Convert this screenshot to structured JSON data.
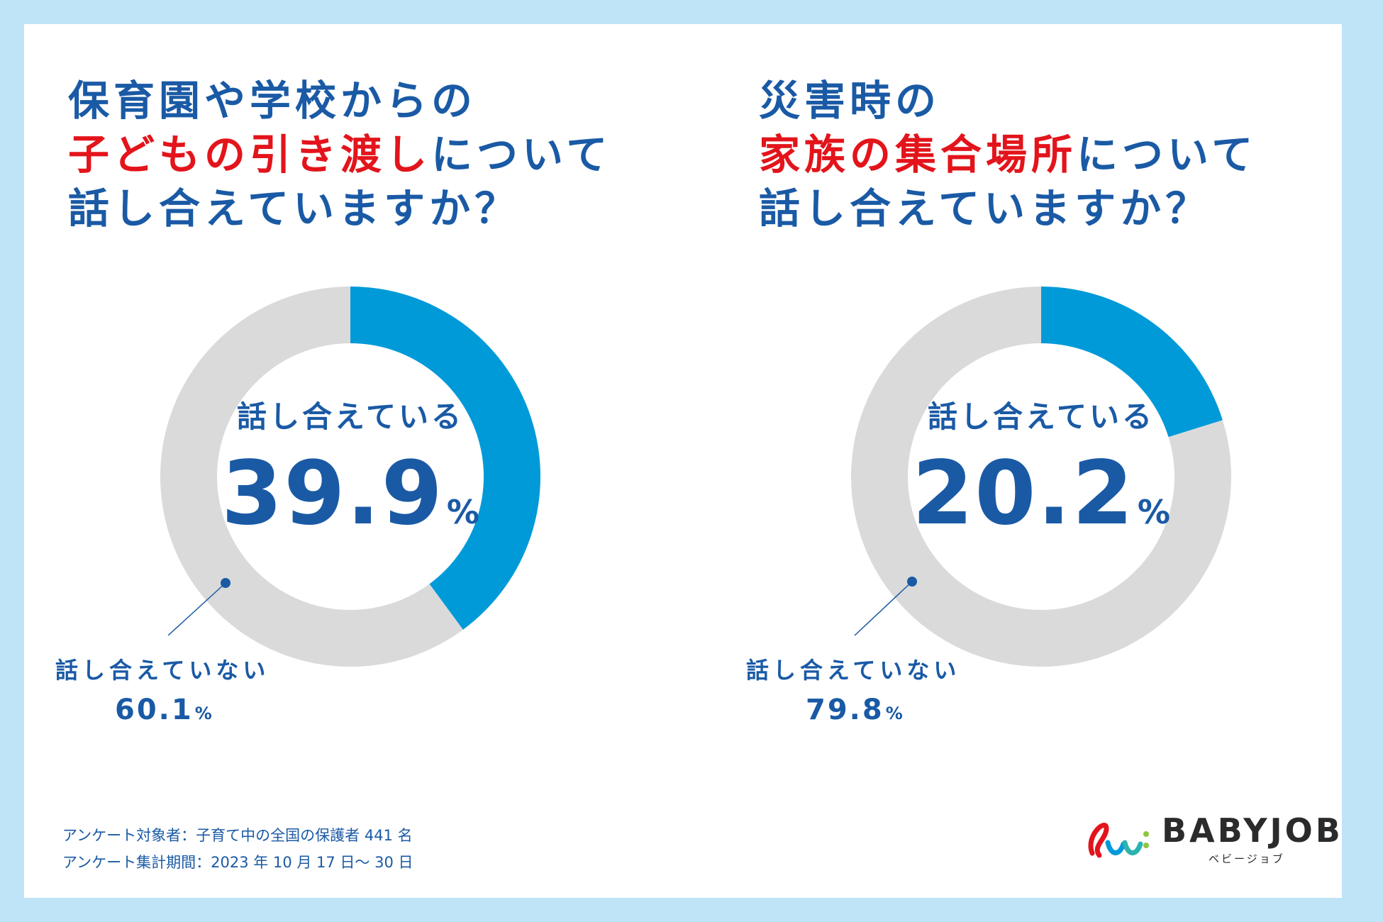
{
  "colors": {
    "accent": "#009ad9",
    "rest": "#dadada",
    "text": "#1a5aa5",
    "highlight": "#e3141b",
    "background": "#bfe3f7"
  },
  "panels": [
    {
      "title": {
        "line1": "保育園や学校からの",
        "line2_highlight": "子どもの引き渡し",
        "line2_rest": "について",
        "line3": "話し合えていますか？"
      },
      "center_label": "話し合えている",
      "center_value": "39.9",
      "center_unit": "%",
      "outer_label": "話し合えていない",
      "outer_value": "60.1",
      "outer_unit": "%"
    },
    {
      "title": {
        "line1": "災害時の",
        "line2_highlight": "家族の集合場所",
        "line2_rest": "について",
        "line3": "話し合えていますか？"
      },
      "center_label": "話し合えている",
      "center_value": "20.2",
      "center_unit": "%",
      "outer_label": "話し合えていない",
      "outer_value": "79.8",
      "outer_unit": "%"
    }
  ],
  "chart_data": [
    {
      "type": "pie",
      "categories": [
        "話し合えている",
        "話し合えていない"
      ],
      "values": [
        39.9,
        60.1
      ]
    },
    {
      "type": "pie",
      "categories": [
        "話し合えている",
        "話し合えていない"
      ],
      "values": [
        20.2,
        79.8
      ]
    }
  ],
  "footnotes": {
    "line1": "アンケート対象者：子育て中の全国の保護者 441 名",
    "line2": "アンケート集計期間：2023 年 10 月 17 日〜 30 日"
  },
  "logo": {
    "wordmark": "BABYJOB",
    "kana": "ベビージョブ"
  }
}
